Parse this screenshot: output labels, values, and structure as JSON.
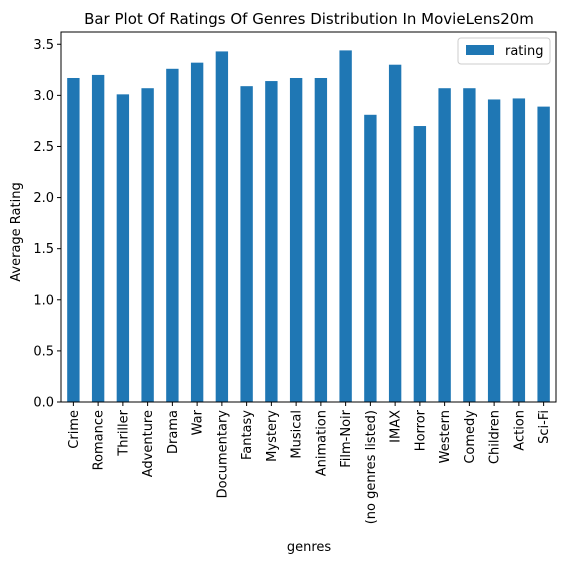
{
  "chart_data": {
    "type": "bar",
    "title": "Bar Plot Of Ratings Of Genres Distribution In MovieLens20m",
    "xlabel": "genres",
    "ylabel": "Average Rating",
    "ylim": [
      0,
      3.62
    ],
    "yticks": [
      "0.0",
      "0.5",
      "1.0",
      "1.5",
      "2.0",
      "2.5",
      "3.0",
      "3.5"
    ],
    "grid": false,
    "legend_position": "top-right",
    "categories": [
      "Crime",
      "Romance",
      "Thriller",
      "Adventure",
      "Drama",
      "War",
      "Documentary",
      "Fantasy",
      "Mystery",
      "Musical",
      "Animation",
      "Film-Noir",
      "(no genres listed)",
      "IMAX",
      "Horror",
      "Western",
      "Comedy",
      "Children",
      "Action",
      "Sci-Fi"
    ],
    "series": [
      {
        "name": "rating",
        "color": "#1f77b4",
        "values": [
          3.17,
          3.2,
          3.01,
          3.07,
          3.26,
          3.32,
          3.43,
          3.09,
          3.14,
          3.17,
          3.17,
          3.44,
          2.81,
          3.3,
          2.7,
          3.07,
          3.07,
          2.96,
          2.97,
          2.89
        ]
      }
    ]
  }
}
